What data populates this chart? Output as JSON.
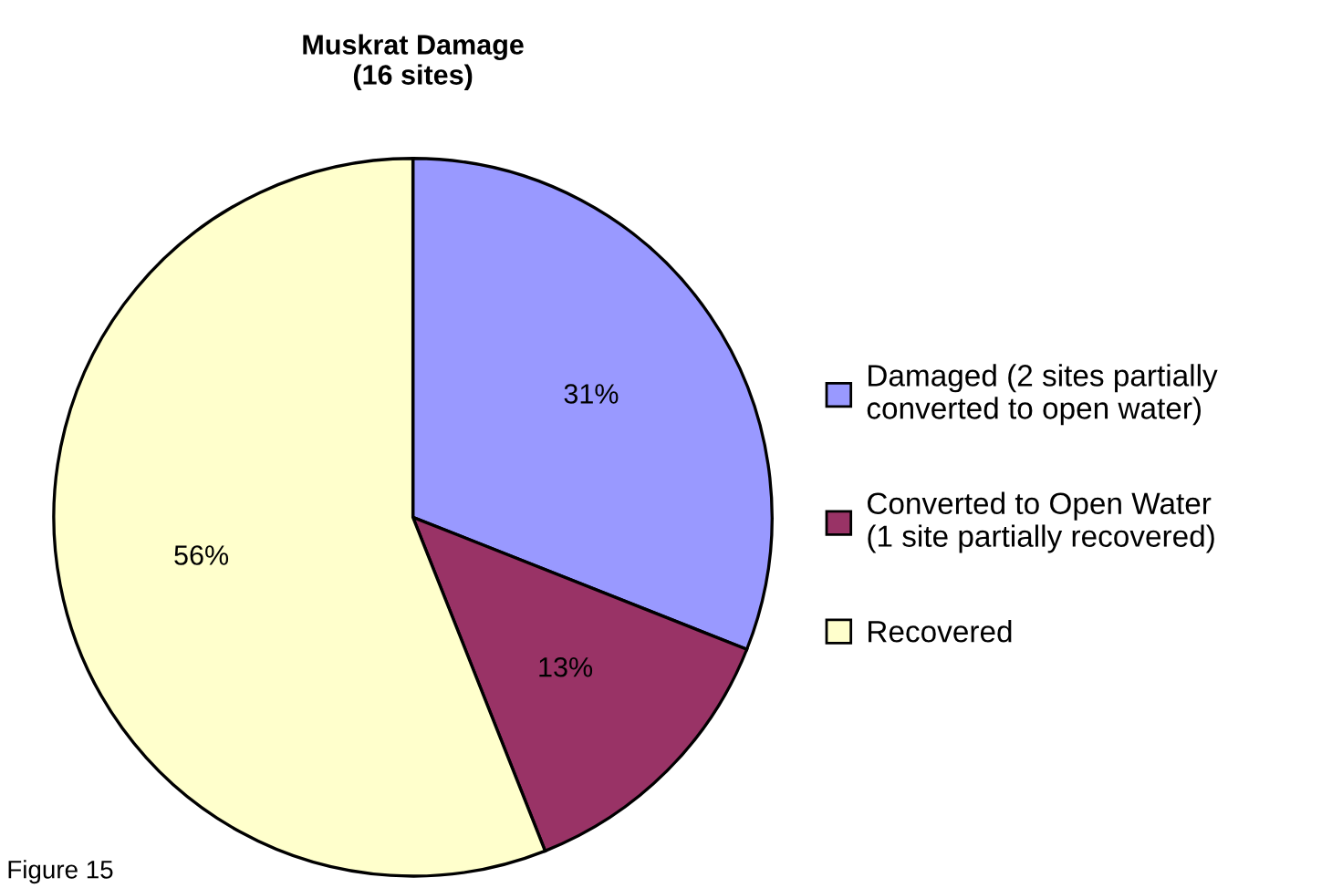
{
  "chart_data": {
    "type": "pie",
    "title": "Muskrat Damage\n(16 sites)",
    "categories": [
      "Damaged (2 sites partially\nconverted to open water)",
      "Converted to Open Water\n(1 site partially recovered)",
      "Recovered"
    ],
    "values": [
      31,
      13,
      56
    ],
    "colors": [
      "#9999ff",
      "#993366",
      "#ffffcc"
    ],
    "value_labels": [
      "31%",
      "13%",
      "56%"
    ],
    "legend": "right",
    "annotations": [
      "Figure 15"
    ]
  }
}
